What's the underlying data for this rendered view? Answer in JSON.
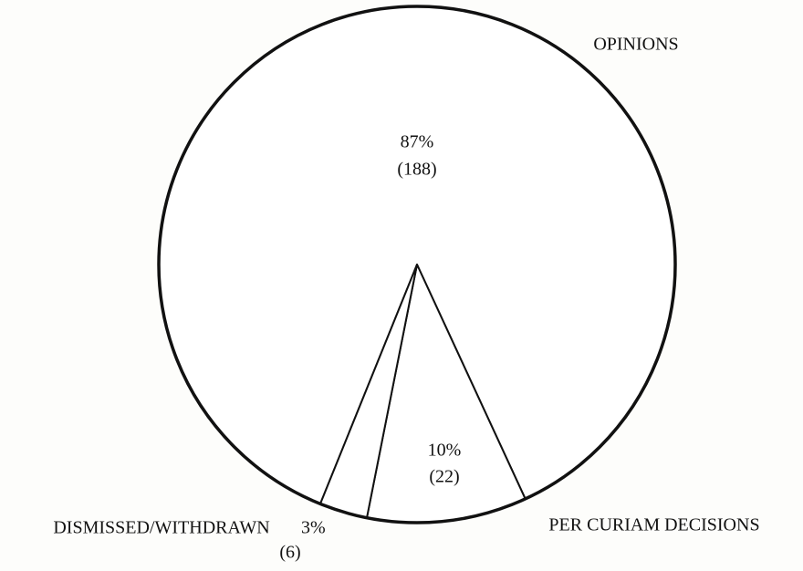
{
  "chart_data": {
    "type": "pie",
    "categories": [
      "OPINIONS",
      "PER CURIAM DECISIONS",
      "DISMISSED/WITHDRAWN"
    ],
    "values": [
      87,
      10,
      3
    ],
    "value_labels": [
      "87%",
      "10%",
      "3%"
    ],
    "counts": [
      188,
      22,
      6
    ],
    "count_labels": [
      "(188)",
      "(22)",
      "(6)"
    ],
    "color": "#ffffff"
  }
}
